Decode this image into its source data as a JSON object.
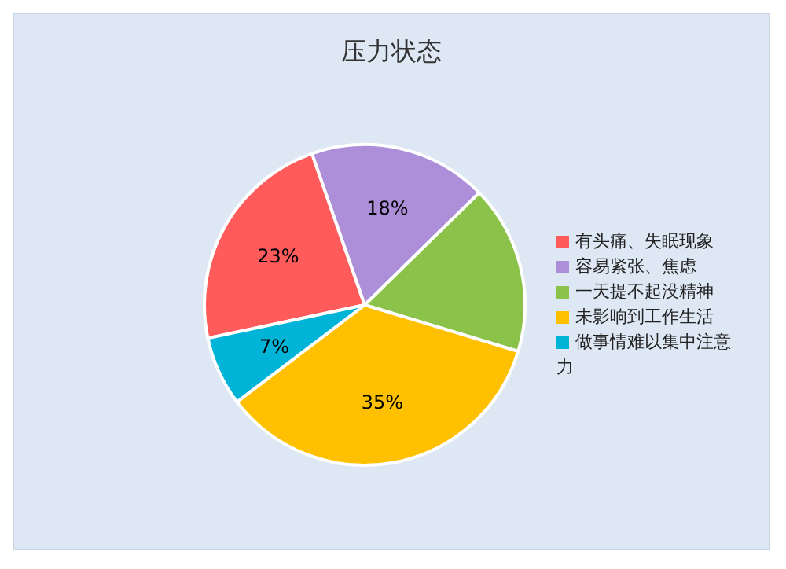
{
  "chart_data": {
    "type": "pie",
    "title": "压力状态",
    "categories": [
      "有头痛、失眠现象",
      "容易紧张、焦虑",
      "一天提不起没精神",
      "未影响到工作生活",
      "做事情难以集中注意力"
    ],
    "values": [
      23,
      18,
      17,
      35,
      7
    ],
    "value_labels": [
      "23%",
      "18%",
      null,
      "35%",
      "7%"
    ],
    "colors": [
      "#ff5b5b",
      "#ac8fd8",
      "#8bc34a",
      "#ffc000",
      "#00b4d8"
    ],
    "legend": "right"
  }
}
